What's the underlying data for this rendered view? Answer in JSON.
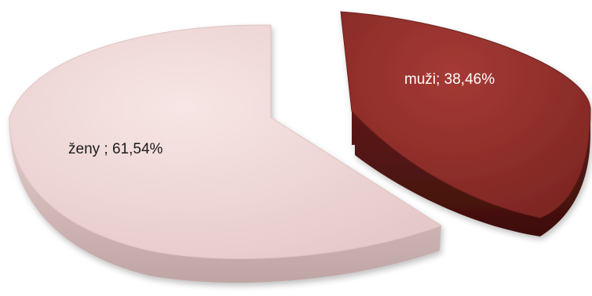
{
  "chart_data": {
    "type": "pie",
    "style": "3d-exploded",
    "slices": [
      {
        "name": "muži",
        "value": 38.46,
        "label": "muži; 38,46%",
        "color": "#8e2e2a",
        "label_color": "#ffffff"
      },
      {
        "name": "ženy",
        "value": 61.54,
        "label": "ženy ; 61,54%",
        "color": "#f2dcdb",
        "label_color": "#1a1a1a"
      }
    ],
    "legend": "none",
    "title": ""
  }
}
